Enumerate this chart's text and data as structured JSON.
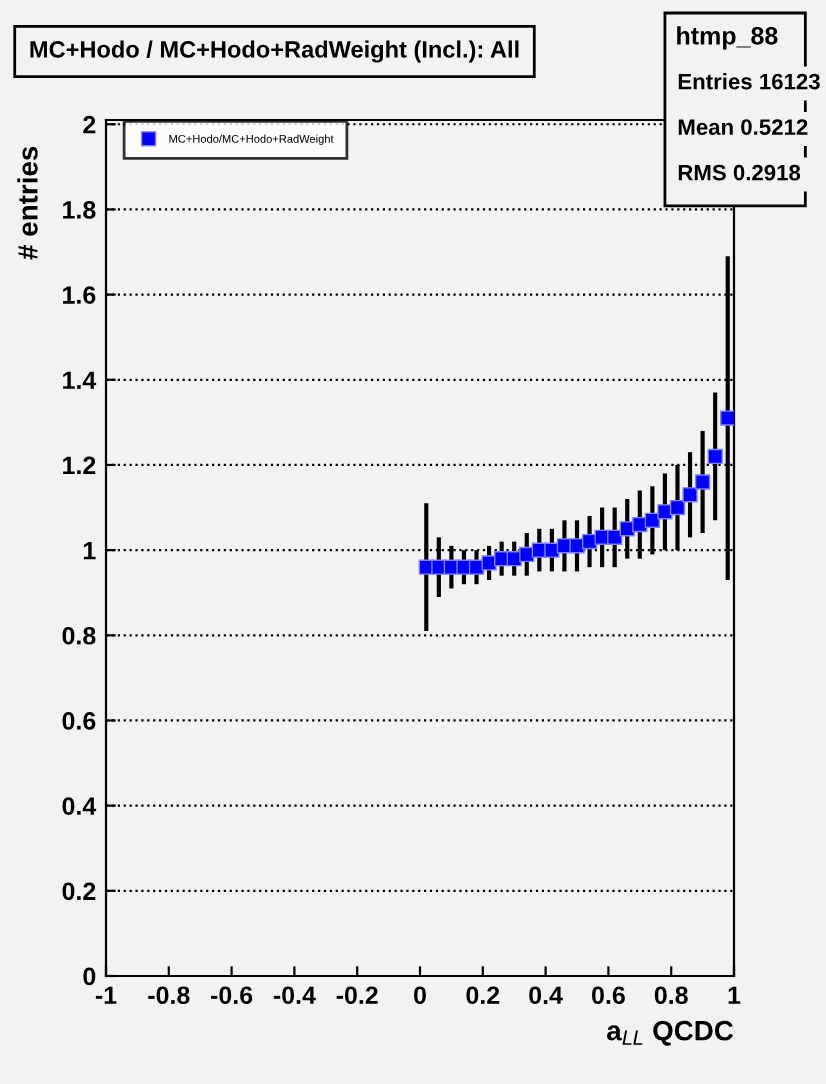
{
  "chart_data": {
    "type": "scatter",
    "title": "MC+Hodo / MC+Hodo+RadWeight (Incl.): All",
    "xlabel": "a$_{LL}$ QCDC",
    "ylabel": "# entries",
    "x": [
      0.02,
      0.06,
      0.1,
      0.14,
      0.18,
      0.22,
      0.26,
      0.3,
      0.34,
      0.38,
      0.42,
      0.46,
      0.5,
      0.54,
      0.58,
      0.62,
      0.66,
      0.7,
      0.74,
      0.78,
      0.82,
      0.86,
      0.9,
      0.94,
      0.98
    ],
    "series": [
      {
        "name": "MC+Hodo/MC+Hodo+RadWeight",
        "color": "#0000ff",
        "values": [
          0.96,
          0.96,
          0.96,
          0.96,
          0.96,
          0.97,
          0.98,
          0.98,
          0.99,
          1.0,
          1.0,
          1.01,
          1.01,
          1.02,
          1.03,
          1.03,
          1.05,
          1.06,
          1.07,
          1.09,
          1.1,
          1.13,
          1.16,
          1.22,
          1.31
        ],
        "errors": [
          0.15,
          0.07,
          0.05,
          0.04,
          0.04,
          0.04,
          0.04,
          0.04,
          0.05,
          0.05,
          0.05,
          0.06,
          0.06,
          0.06,
          0.07,
          0.07,
          0.07,
          0.08,
          0.08,
          0.09,
          0.1,
          0.1,
          0.12,
          0.15,
          0.38
        ]
      }
    ],
    "xlim": [
      -1,
      1
    ],
    "ylim": [
      0,
      2.01
    ],
    "xticks": [
      -1,
      -0.8,
      -0.6,
      -0.4,
      -0.2,
      0,
      0.2,
      0.4,
      0.6,
      0.8,
      1
    ],
    "yticks": [
      0,
      0.2,
      0.4,
      0.6,
      0.8,
      1,
      1.2,
      1.4,
      1.6,
      1.8,
      2
    ],
    "grid": "y",
    "legend": "top left",
    "marker": "square",
    "annotations": [
      "htmp_88",
      "Entries 16123",
      "Mean 0.5212",
      "RMS 0.2918"
    ]
  }
}
